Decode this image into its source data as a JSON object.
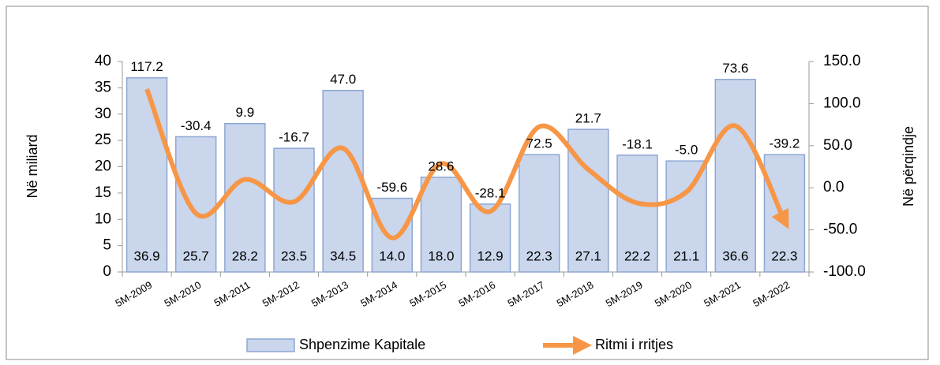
{
  "chart_data": {
    "type": "bar_line",
    "categories": [
      "5M-2009",
      "5M-2010",
      "5M-2011",
      "5M-2012",
      "5M-2013",
      "5M-2014",
      "5M-2015",
      "5M-2016",
      "5M-2017",
      "5M-2018",
      "5M-2019",
      "5M-2020",
      "5M-2021",
      "5M-2022"
    ],
    "series": [
      {
        "name": "Shpenzime Kapitale",
        "type": "bar",
        "color": "#c9d6ec",
        "values": [
          36.9,
          25.7,
          28.2,
          23.5,
          34.5,
          14.0,
          18.0,
          12.9,
          22.3,
          27.1,
          22.2,
          21.1,
          36.6,
          22.3
        ],
        "value_labels": [
          "36.9",
          "25.7",
          "28.2",
          "23.5",
          "34.5",
          "14.0",
          "18.0",
          "12.9",
          "22.3",
          "27.1",
          "22.2",
          "21.1",
          "36.6",
          "22.3"
        ]
      },
      {
        "name": "Ritmi i rritjes",
        "type": "line",
        "axis": "y2",
        "color": "#f79646",
        "values": [
          117.2,
          -30.4,
          9.9,
          -16.7,
          47.0,
          -59.6,
          28.6,
          -28.1,
          72.5,
          21.7,
          -18.1,
          -5.0,
          73.6,
          -39.2
        ],
        "value_labels": [
          "117.2",
          "-30.4",
          "9.9",
          "-16.7",
          "47.0",
          "-59.6",
          "28.6",
          "-28.1",
          "72.5",
          "21.7",
          "-18.1",
          "-5.0",
          "73.6",
          "-39.2"
        ]
      }
    ],
    "ylabel": "Në miliard",
    "y2label": "Në përqindje",
    "ylim": [
      0,
      40
    ],
    "yticks": [
      0,
      5,
      10,
      15,
      20,
      25,
      30,
      35,
      40
    ],
    "y2lim": [
      -100,
      150
    ],
    "y2ticks": [
      {
        "value": -100,
        "label": "-100.0"
      },
      {
        "value": -50,
        "label": "-50.0"
      },
      {
        "value": 0,
        "label": "0.0"
      },
      {
        "value": 50,
        "label": "50.0"
      },
      {
        "value": 100,
        "label": "100.0"
      },
      {
        "value": 150,
        "label": "150.0"
      }
    ],
    "legend": "bottom"
  }
}
